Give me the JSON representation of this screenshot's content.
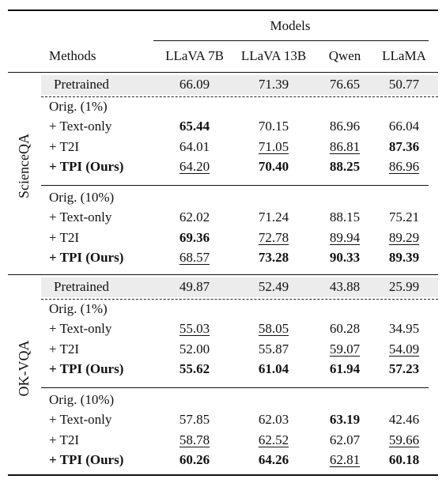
{
  "header": {
    "group_label": "Models",
    "methods_label": "Methods",
    "models": [
      "LLaVA 7B",
      "LLaVA 13B",
      "Qwen",
      "LLaMA"
    ]
  },
  "datasets": [
    {
      "name": "ScienceQA",
      "pretrained": {
        "label": "Pretrained",
        "values": [
          "66.09",
          "71.39",
          "76.65",
          "50.77"
        ]
      },
      "groups": [
        {
          "label": "Orig. (1%)",
          "rows": [
            {
              "label": "+ Text-only",
              "bold_label": false,
              "values": [
                "65.44",
                "70.15",
                "86.96",
                "66.04"
              ],
              "bold": [
                true,
                false,
                false,
                false
              ],
              "underline": [
                false,
                false,
                false,
                false
              ]
            },
            {
              "label": "+ T2I",
              "bold_label": false,
              "values": [
                "64.01",
                "71.05",
                "86.81",
                "87.36"
              ],
              "bold": [
                false,
                false,
                false,
                true
              ],
              "underline": [
                false,
                true,
                true,
                false
              ]
            },
            {
              "label": "+ TPI (Ours)",
              "bold_label": true,
              "values": [
                "64.20",
                "70.40",
                "88.25",
                "86.96"
              ],
              "bold": [
                false,
                true,
                true,
                false
              ],
              "underline": [
                true,
                false,
                false,
                true
              ]
            }
          ]
        },
        {
          "label": "Orig. (10%)",
          "rows": [
            {
              "label": "+ Text-only",
              "bold_label": false,
              "values": [
                "62.02",
                "71.24",
                "88.15",
                "75.21"
              ],
              "bold": [
                false,
                false,
                false,
                false
              ],
              "underline": [
                false,
                false,
                false,
                false
              ]
            },
            {
              "label": "+ T2I",
              "bold_label": false,
              "values": [
                "69.36",
                "72.78",
                "89.94",
                "89.29"
              ],
              "bold": [
                true,
                false,
                false,
                false
              ],
              "underline": [
                false,
                true,
                true,
                true
              ]
            },
            {
              "label": "+ TPI (Ours)",
              "bold_label": true,
              "values": [
                "68.57",
                "73.28",
                "90.33",
                "89.39"
              ],
              "bold": [
                false,
                true,
                true,
                true
              ],
              "underline": [
                true,
                false,
                false,
                false
              ]
            }
          ]
        }
      ]
    },
    {
      "name": "OK-VQA",
      "pretrained": {
        "label": "Pretrained",
        "values": [
          "49.87",
          "52.49",
          "43.88",
          "25.99"
        ]
      },
      "groups": [
        {
          "label": "Orig. (1%)",
          "rows": [
            {
              "label": "+ Text-only",
              "bold_label": false,
              "values": [
                "55.03",
                "58.05",
                "60.28",
                "34.95"
              ],
              "bold": [
                false,
                false,
                false,
                false
              ],
              "underline": [
                true,
                true,
                false,
                false
              ]
            },
            {
              "label": "+ T2I",
              "bold_label": false,
              "values": [
                "52.00",
                "55.87",
                "59.07",
                "54.09"
              ],
              "bold": [
                false,
                false,
                false,
                false
              ],
              "underline": [
                false,
                false,
                true,
                true
              ]
            },
            {
              "label": "+ TPI (Ours)",
              "bold_label": true,
              "values": [
                "55.62",
                "61.04",
                "61.94",
                "57.23"
              ],
              "bold": [
                true,
                true,
                true,
                true
              ],
              "underline": [
                false,
                false,
                false,
                false
              ]
            }
          ]
        },
        {
          "label": "Orig. (10%)",
          "rows": [
            {
              "label": "+ Text-only",
              "bold_label": false,
              "values": [
                "57.85",
                "62.03",
                "63.19",
                "42.46"
              ],
              "bold": [
                false,
                false,
                true,
                false
              ],
              "underline": [
                false,
                false,
                false,
                false
              ]
            },
            {
              "label": "+ T2I",
              "bold_label": false,
              "values": [
                "58.78",
                "62.52",
                "62.07",
                "59.66"
              ],
              "bold": [
                false,
                false,
                false,
                false
              ],
              "underline": [
                true,
                true,
                false,
                true
              ]
            },
            {
              "label": "+ TPI (Ours)",
              "bold_label": true,
              "values": [
                "60.26",
                "64.26",
                "62.81",
                "60.18"
              ],
              "bold": [
                true,
                true,
                false,
                true
              ],
              "underline": [
                false,
                false,
                true,
                false
              ]
            }
          ]
        }
      ]
    }
  ]
}
